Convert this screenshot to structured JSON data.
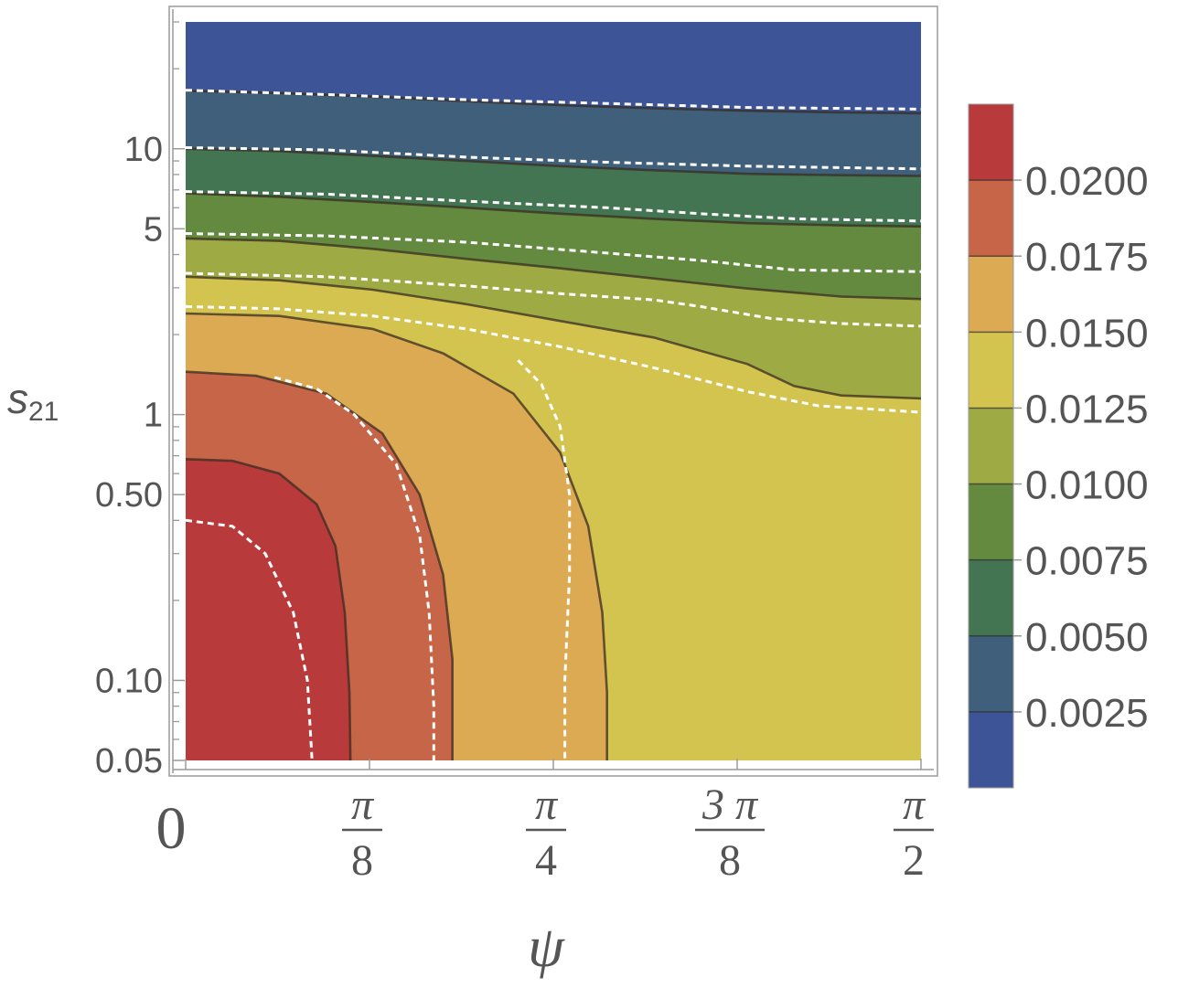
{
  "chart_data": {
    "type": "heatmap",
    "subtype": "contour",
    "title": "",
    "xlabel": "ψ",
    "ylabel_main": "s",
    "ylabel_sub": "21",
    "y_scale": "log",
    "xlim": [
      0,
      1.5708
    ],
    "ylim": [
      0.05,
      30
    ],
    "x_ticks": [
      {
        "value": 0,
        "label": "0"
      },
      {
        "value": 0.3927,
        "num": "π",
        "den": "8"
      },
      {
        "value": 0.7854,
        "num": "π",
        "den": "4"
      },
      {
        "value": 1.1781,
        "num": "3 π",
        "den": "8"
      },
      {
        "value": 1.5708,
        "num": "π",
        "den": "2"
      }
    ],
    "y_ticks": [
      {
        "value": 0.05,
        "label": "0.05"
      },
      {
        "value": 0.1,
        "label": "0.10"
      },
      {
        "value": 0.5,
        "label": "0.50"
      },
      {
        "value": 1,
        "label": "1"
      },
      {
        "value": 5,
        "label": "5"
      },
      {
        "value": 10,
        "label": "10"
      }
    ],
    "y_minor_ticks": [
      0.06,
      0.07,
      0.08,
      0.09,
      0.2,
      0.3,
      0.4,
      0.6,
      0.7,
      0.8,
      0.9,
      2,
      3,
      4,
      6,
      7,
      8,
      9,
      20,
      30
    ],
    "legend": {
      "placement": "right",
      "labels": [
        "0.0200",
        "0.0175",
        "0.0150",
        "0.0125",
        "0.0100",
        "0.0075",
        "0.0050",
        "0.0025"
      ],
      "colors": [
        "#b93a3a",
        "#c76549",
        "#dcaa53",
        "#d3c44f",
        "#9eab45",
        "#638a3f",
        "#447553",
        "#3f5f7b",
        "#3d5597"
      ]
    },
    "band_colors_low_to_high": [
      "#3d5597",
      "#3f5f7b",
      "#447553",
      "#638a3f",
      "#9eab45",
      "#d3c44f",
      "#dcaa53",
      "#c76549",
      "#b93a3a"
    ],
    "solid_contours": [
      {
        "level": 0.02,
        "points": [
          [
            0,
            0.68
          ],
          [
            0.1,
            0.67
          ],
          [
            0.2,
            0.6
          ],
          [
            0.28,
            0.46
          ],
          [
            0.32,
            0.32
          ],
          [
            0.34,
            0.18
          ],
          [
            0.35,
            0.09
          ],
          [
            0.352,
            0.05
          ]
        ]
      },
      {
        "level": 0.0175,
        "points": [
          [
            0,
            1.45
          ],
          [
            0.15,
            1.4
          ],
          [
            0.3,
            1.2
          ],
          [
            0.42,
            0.85
          ],
          [
            0.5,
            0.5
          ],
          [
            0.55,
            0.25
          ],
          [
            0.57,
            0.12
          ],
          [
            0.57,
            0.05
          ]
        ]
      },
      {
        "level": 0.015,
        "points": [
          [
            0,
            2.4
          ],
          [
            0.2,
            2.35
          ],
          [
            0.4,
            2.1
          ],
          [
            0.55,
            1.7
          ],
          [
            0.7,
            1.2
          ],
          [
            0.8,
            0.72
          ],
          [
            0.86,
            0.38
          ],
          [
            0.89,
            0.18
          ],
          [
            0.9,
            0.09
          ],
          [
            0.9,
            0.05
          ]
        ]
      },
      {
        "level": 0.0125,
        "points": [
          [
            0,
            3.3
          ],
          [
            0.2,
            3.2
          ],
          [
            0.4,
            2.95
          ],
          [
            0.6,
            2.6
          ],
          [
            0.8,
            2.25
          ],
          [
            1.0,
            1.95
          ],
          [
            1.2,
            1.55
          ],
          [
            1.3,
            1.28
          ],
          [
            1.4,
            1.18
          ],
          [
            1.5708,
            1.15
          ]
        ]
      },
      {
        "level": 0.01,
        "points": [
          [
            0,
            4.6
          ],
          [
            0.2,
            4.5
          ],
          [
            0.4,
            4.2
          ],
          [
            0.6,
            3.85
          ],
          [
            0.8,
            3.55
          ],
          [
            1.0,
            3.25
          ],
          [
            1.2,
            2.98
          ],
          [
            1.4,
            2.78
          ],
          [
            1.5708,
            2.72
          ]
        ]
      },
      {
        "level": 0.0075,
        "points": [
          [
            0,
            6.8
          ],
          [
            0.2,
            6.6
          ],
          [
            0.4,
            6.3
          ],
          [
            0.6,
            6.0
          ],
          [
            0.8,
            5.7
          ],
          [
            1.0,
            5.45
          ],
          [
            1.2,
            5.25
          ],
          [
            1.4,
            5.15
          ],
          [
            1.5708,
            5.1
          ]
        ]
      },
      {
        "level": 0.005,
        "points": [
          [
            0,
            10.0
          ],
          [
            0.2,
            9.8
          ],
          [
            0.4,
            9.4
          ],
          [
            0.6,
            9.0
          ],
          [
            0.8,
            8.6
          ],
          [
            1.0,
            8.3
          ],
          [
            1.2,
            8.05
          ],
          [
            1.4,
            7.95
          ],
          [
            1.5708,
            7.9
          ]
        ]
      },
      {
        "level": 0.0025,
        "points": [
          [
            0,
            16.5
          ],
          [
            0.2,
            16.2
          ],
          [
            0.4,
            15.7
          ],
          [
            0.6,
            15.1
          ],
          [
            0.8,
            14.6
          ],
          [
            1.0,
            14.2
          ],
          [
            1.2,
            13.9
          ],
          [
            1.4,
            13.7
          ],
          [
            1.5708,
            13.6
          ]
        ]
      }
    ],
    "dashed_contours": [
      {
        "points": [
          [
            0,
            0.4
          ],
          [
            0.1,
            0.38
          ],
          [
            0.17,
            0.3
          ],
          [
            0.23,
            0.18
          ],
          [
            0.26,
            0.1
          ],
          [
            0.27,
            0.05
          ]
        ]
      },
      {
        "points": [
          [
            0.19,
            1.38
          ],
          [
            0.28,
            1.25
          ],
          [
            0.36,
            1.0
          ],
          [
            0.45,
            0.65
          ],
          [
            0.5,
            0.35
          ],
          [
            0.52,
            0.18
          ],
          [
            0.53,
            0.08
          ],
          [
            0.53,
            0.05
          ]
        ]
      },
      {
        "points": [
          [
            0,
            2.55
          ],
          [
            0.2,
            2.5
          ],
          [
            0.4,
            2.35
          ],
          [
            0.6,
            2.1
          ],
          [
            0.8,
            1.8
          ],
          [
            1.0,
            1.5
          ],
          [
            1.2,
            1.22
          ],
          [
            1.35,
            1.08
          ],
          [
            1.5708,
            1.02
          ]
        ]
      },
      {
        "points": [
          [
            0.71,
            1.6
          ],
          [
            0.76,
            1.3
          ],
          [
            0.8,
            0.9
          ],
          [
            0.82,
            0.5
          ],
          [
            0.82,
            0.25
          ],
          [
            0.81,
            0.1
          ],
          [
            0.81,
            0.05
          ]
        ]
      },
      {
        "points": [
          [
            0,
            3.4
          ],
          [
            0.3,
            3.3
          ],
          [
            0.6,
            3.05
          ],
          [
            0.8,
            2.85
          ],
          [
            1.0,
            2.7
          ],
          [
            1.1,
            2.55
          ],
          [
            1.25,
            2.3
          ],
          [
            1.4,
            2.2
          ],
          [
            1.5708,
            2.15
          ]
        ]
      },
      {
        "points": [
          [
            0,
            4.8
          ],
          [
            0.3,
            4.7
          ],
          [
            0.6,
            4.45
          ],
          [
            0.9,
            4.05
          ],
          [
            1.1,
            3.8
          ],
          [
            1.3,
            3.5
          ],
          [
            1.5708,
            3.45
          ]
        ]
      },
      {
        "points": [
          [
            0,
            6.9
          ],
          [
            0.3,
            6.75
          ],
          [
            0.6,
            6.35
          ],
          [
            0.9,
            6.0
          ],
          [
            1.1,
            5.7
          ],
          [
            1.3,
            5.45
          ],
          [
            1.5708,
            5.35
          ]
        ]
      },
      {
        "points": [
          [
            0,
            10.1
          ],
          [
            0.3,
            9.9
          ],
          [
            0.6,
            9.3
          ],
          [
            0.9,
            8.9
          ],
          [
            1.2,
            8.6
          ],
          [
            1.5708,
            8.4
          ]
        ]
      },
      {
        "points": [
          [
            0,
            16.6
          ],
          [
            0.3,
            16.0
          ],
          [
            0.6,
            15.3
          ],
          [
            0.9,
            14.8
          ],
          [
            1.2,
            14.3
          ],
          [
            1.5708,
            14.1
          ]
        ]
      }
    ]
  }
}
